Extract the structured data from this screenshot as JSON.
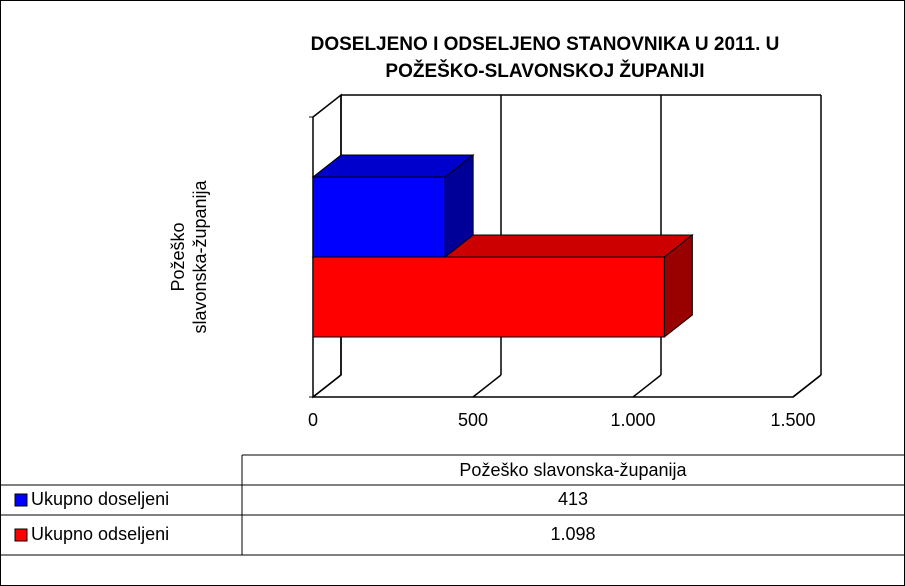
{
  "chart_data": {
    "type": "bar3d_horizontal",
    "title": "DOSELJENO I ODSELJENO STANOVNIKA U 2011. U",
    "subtitle": "POŽEŠKO-SLAVONSKOJ ŽUPANIJI",
    "categories": [
      "Požeško slavonska-županija"
    ],
    "series": [
      {
        "name": "Ukupno doseljeni",
        "color": "#0000ff",
        "values": [
          413
        ],
        "value_labels": [
          "413"
        ]
      },
      {
        "name": "Ukupno odseljeni",
        "color": "#ff0000",
        "values": [
          1098
        ],
        "value_labels": [
          "1.098"
        ]
      }
    ],
    "xlim": [
      0,
      1500
    ],
    "xticks": [
      0,
      500,
      {
        "value": 1000,
        "label": "1.000"
      },
      {
        "value": 1500,
        "label": "1.500"
      }
    ],
    "grid": true
  }
}
